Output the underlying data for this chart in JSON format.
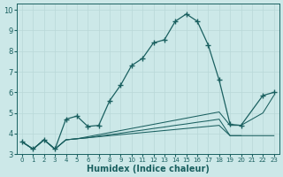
{
  "xlabel": "Humidex (Indice chaleur)",
  "bg_color": "#cce8e8",
  "grid_color": "#b8d8d8",
  "line_color": "#1a6060",
  "xlim": [
    -0.5,
    23.5
  ],
  "ylim": [
    3.0,
    10.3
  ],
  "yticks": [
    3,
    4,
    5,
    6,
    7,
    8,
    9,
    10
  ],
  "xtick_labels": [
    "0",
    "1",
    "2",
    "3",
    "4",
    "5",
    "6",
    "7",
    "8",
    "9",
    "10",
    "11",
    "12",
    "13",
    "14",
    "15",
    "16",
    "17",
    "18",
    "19",
    "20",
    "21",
    "22",
    "23"
  ],
  "peak_x": [
    0,
    1,
    2,
    3,
    4,
    5,
    6,
    7,
    8,
    9,
    10,
    11,
    12,
    13,
    14,
    15,
    16,
    17,
    18,
    19,
    20,
    22,
    23
  ],
  "peak_y": [
    3.6,
    3.25,
    3.7,
    3.25,
    4.7,
    4.85,
    4.35,
    4.4,
    5.6,
    6.35,
    7.3,
    7.65,
    8.4,
    8.55,
    9.45,
    9.8,
    9.45,
    8.3,
    6.6,
    4.45,
    4.4,
    5.85,
    6.0
  ],
  "line_a_x": [
    0,
    1,
    2,
    3,
    4,
    5,
    6,
    7,
    8,
    9,
    10,
    11,
    12,
    13,
    14,
    15,
    16,
    17,
    18,
    19,
    20,
    22,
    23
  ],
  "line_a_y": [
    3.6,
    3.25,
    3.7,
    3.25,
    3.7,
    3.75,
    3.85,
    3.95,
    4.05,
    4.15,
    4.25,
    4.35,
    4.45,
    4.55,
    4.65,
    4.75,
    4.85,
    4.95,
    5.05,
    4.4,
    4.4,
    5.0,
    5.85
  ],
  "line_b_x": [
    0,
    1,
    2,
    3,
    4,
    5,
    6,
    7,
    8,
    9,
    10,
    11,
    12,
    13,
    14,
    15,
    16,
    17,
    18,
    19,
    20,
    22,
    23
  ],
  "line_b_y": [
    3.6,
    3.25,
    3.7,
    3.25,
    3.7,
    3.75,
    3.8,
    3.85,
    3.9,
    3.95,
    4.0,
    4.05,
    4.1,
    4.15,
    4.2,
    4.25,
    4.3,
    4.35,
    4.4,
    3.9,
    3.9,
    3.9,
    3.9
  ],
  "line_c_x": [
    0,
    1,
    2,
    3,
    4,
    5,
    6,
    7,
    8,
    9,
    10,
    11,
    12,
    13,
    14,
    15,
    16,
    17,
    18,
    19,
    20
  ],
  "line_c_y": [
    3.6,
    3.25,
    3.7,
    3.25,
    3.7,
    3.75,
    3.8,
    3.88,
    3.95,
    4.02,
    4.1,
    4.17,
    4.25,
    4.32,
    4.4,
    4.47,
    4.55,
    4.62,
    4.7,
    3.9,
    3.9
  ]
}
